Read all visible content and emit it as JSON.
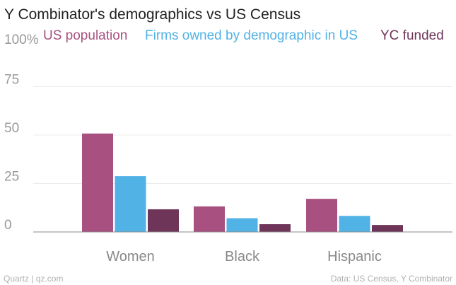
{
  "chart_data": {
    "type": "bar",
    "title": "Y Combinator's demographics vs US Census",
    "categories": [
      "Women",
      "Black",
      "Hispanic"
    ],
    "series": [
      {
        "name": "US population",
        "color": "#a8507f",
        "values": [
          50.8,
          13.2,
          17.1
        ]
      },
      {
        "name": "Firms owned by demographic in US",
        "color": "#51b2e5",
        "values": [
          28.8,
          7.1,
          8.3
        ]
      },
      {
        "name": "YC funded",
        "color": "#6e3559",
        "values": [
          11.7,
          4.0,
          3.6
        ]
      }
    ],
    "ylim": [
      0,
      100
    ],
    "yticks": [
      "0",
      "25",
      "50",
      "75",
      "100%"
    ],
    "ytick_values": [
      0,
      25,
      50,
      75,
      100
    ],
    "grid": true,
    "legend_position": "top"
  },
  "footer": {
    "source_left": "Quartz | qz.com",
    "source_right": "Data: US Census, Y Combinator"
  }
}
